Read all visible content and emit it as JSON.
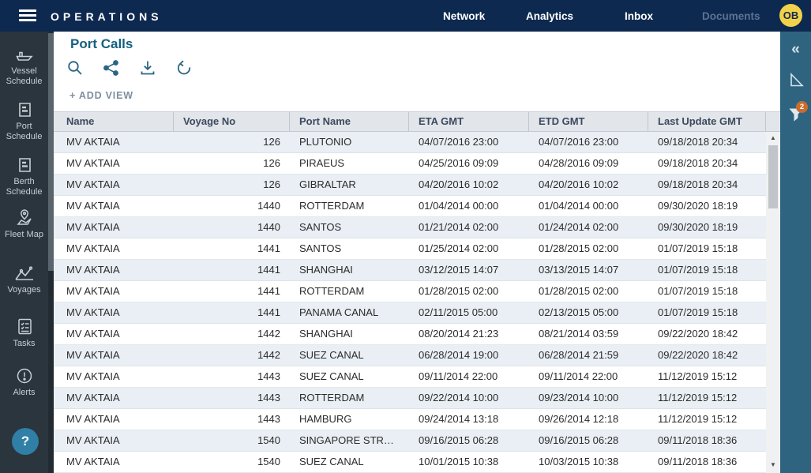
{
  "topbar": {
    "brand": "OPERATIONS",
    "nav": [
      {
        "label": "Network"
      },
      {
        "label": "Analytics"
      },
      {
        "label": "Inbox"
      },
      {
        "label": "Documents",
        "disabled": true
      }
    ],
    "avatar_initials": "OB"
  },
  "sidebar": {
    "items": [
      {
        "label": "Vessel Schedule",
        "icon": "ship-icon"
      },
      {
        "label": "Port Schedule",
        "icon": "schedule-icon"
      },
      {
        "label": "Berth Schedule",
        "icon": "schedule-icon"
      },
      {
        "label": "Fleet Map",
        "icon": "map-pin-icon"
      },
      {
        "label": "Voyages",
        "icon": "route-icon"
      },
      {
        "label": "Tasks",
        "icon": "checklist-icon"
      },
      {
        "label": "Alerts",
        "icon": "alert-icon"
      }
    ],
    "help_label": "?"
  },
  "main": {
    "title": "Port Calls",
    "toolbar_icons": [
      "search",
      "share",
      "download",
      "undo"
    ],
    "add_view_label": "+ ADD VIEW",
    "table": {
      "columns": [
        "Name",
        "Voyage No",
        "Port Name",
        "ETA GMT",
        "ETD GMT",
        "Last Update GMT"
      ],
      "rows": [
        [
          "MV AKTAIA",
          "126",
          "PLUTONIO",
          "04/07/2016 23:00",
          "04/07/2016 23:00",
          "09/18/2018 20:34"
        ],
        [
          "MV AKTAIA",
          "126",
          "PIRAEUS",
          "04/25/2016 09:09",
          "04/28/2016 09:09",
          "09/18/2018 20:34"
        ],
        [
          "MV AKTAIA",
          "126",
          "GIBRALTAR",
          "04/20/2016 10:02",
          "04/20/2016 10:02",
          "09/18/2018 20:34"
        ],
        [
          "MV AKTAIA",
          "1440",
          "ROTTERDAM",
          "01/04/2014 00:00",
          "01/04/2014 00:00",
          "09/30/2020 18:19"
        ],
        [
          "MV AKTAIA",
          "1440",
          "SANTOS",
          "01/21/2014 02:00",
          "01/24/2014 02:00",
          "09/30/2020 18:19"
        ],
        [
          "MV AKTAIA",
          "1441",
          "SANTOS",
          "01/25/2014 02:00",
          "01/28/2015 02:00",
          "01/07/2019 15:18"
        ],
        [
          "MV AKTAIA",
          "1441",
          "SHANGHAI",
          "03/12/2015 14:07",
          "03/13/2015 14:07",
          "01/07/2019 15:18"
        ],
        [
          "MV AKTAIA",
          "1441",
          "ROTTERDAM",
          "01/28/2015 02:00",
          "01/28/2015 02:00",
          "01/07/2019 15:18"
        ],
        [
          "MV AKTAIA",
          "1441",
          "PANAMA CANAL",
          "02/11/2015 05:00",
          "02/13/2015 05:00",
          "01/07/2019 15:18"
        ],
        [
          "MV AKTAIA",
          "1442",
          "SHANGHAI",
          "08/20/2014 21:23",
          "08/21/2014 03:59",
          "09/22/2020 18:42"
        ],
        [
          "MV AKTAIA",
          "1442",
          "SUEZ CANAL",
          "06/28/2014 19:00",
          "06/28/2014 21:59",
          "09/22/2020 18:42"
        ],
        [
          "MV AKTAIA",
          "1443",
          "SUEZ CANAL",
          "09/11/2014 22:00",
          "09/11/2014 22:00",
          "11/12/2019 15:12"
        ],
        [
          "MV AKTAIA",
          "1443",
          "ROTTERDAM",
          "09/22/2014 10:00",
          "09/23/2014 10:00",
          "11/12/2019 15:12"
        ],
        [
          "MV AKTAIA",
          "1443",
          "HAMBURG",
          "09/24/2014 13:18",
          "09/26/2014 12:18",
          "11/12/2019 15:12"
        ],
        [
          "MV AKTAIA",
          "1540",
          "SINGAPORE STR…",
          "09/16/2015 06:28",
          "09/16/2015 06:28",
          "09/11/2018 18:36"
        ],
        [
          "MV AKTAIA",
          "1540",
          "SUEZ CANAL",
          "10/01/2015 10:38",
          "10/03/2015 10:38",
          "09/11/2018 18:36"
        ]
      ]
    }
  },
  "right_panel": {
    "collapse_glyph": "«",
    "filter_badge": "2"
  },
  "colors": {
    "topbar_navy": "#0e2950",
    "sidebar_dark": "#2b353d",
    "right_panel_teal": "#2e6480",
    "title_teal": "#16607f",
    "avatar_yellow": "#f2d24b",
    "badge_orange": "#cb6c2e",
    "row_alt_blue": "#e9eff4",
    "header_gray": "#e2e5ea"
  }
}
